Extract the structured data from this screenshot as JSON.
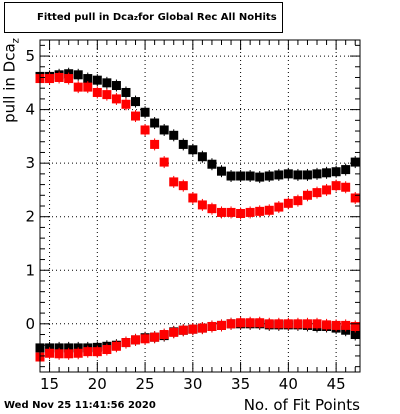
{
  "title": {
    "text": "Fitted pull in Dca",
    "sub": "z",
    "rest": " for Global Rec All NoHits"
  },
  "footer": "Wed Nov 25 11:41:56 2020",
  "colors": {
    "series_black": "#000000",
    "series_red": "#ff0000",
    "grid": "#000000"
  },
  "chart_data": {
    "type": "scatter",
    "title": "Fitted pull in Dca_z for Global Rec All NoHits",
    "xlabel": "No. of Fit Points",
    "ylabel": "pull in Dca_z",
    "xlim": [
      14,
      47.5
    ],
    "ylim": [
      -0.9,
      5.3
    ],
    "x_ticks": [
      15,
      20,
      25,
      30,
      35,
      40,
      45
    ],
    "y_ticks": [
      0,
      1,
      2,
      3,
      4,
      5
    ],
    "grid": true,
    "series": [
      {
        "color": "#000000",
        "x": [
          14,
          15,
          16,
          17,
          18,
          19,
          20,
          21,
          22,
          23,
          24,
          25,
          26,
          27,
          28,
          29,
          30,
          31,
          32,
          33,
          34,
          35,
          36,
          37,
          38,
          39,
          40,
          41,
          42,
          43,
          44,
          45,
          46,
          47
        ],
        "y": [
          4.62,
          4.62,
          4.65,
          4.67,
          4.65,
          4.58,
          4.55,
          4.5,
          4.45,
          4.32,
          4.15,
          3.95,
          3.75,
          3.62,
          3.52,
          3.35,
          3.25,
          3.12,
          2.98,
          2.85,
          2.76,
          2.76,
          2.76,
          2.74,
          2.76,
          2.78,
          2.8,
          2.78,
          2.78,
          2.8,
          2.82,
          2.84,
          2.88,
          3.02
        ]
      },
      {
        "color": "#000000",
        "x": [
          14,
          15,
          16,
          17,
          18,
          19,
          20,
          21,
          22,
          23,
          24,
          25,
          26,
          27,
          28,
          29,
          30,
          31,
          32,
          33,
          34,
          35,
          36,
          37,
          38,
          39,
          40,
          41,
          42,
          43,
          44,
          45,
          46,
          47
        ],
        "y": [
          -0.45,
          -0.45,
          -0.45,
          -0.45,
          -0.45,
          -0.45,
          -0.44,
          -0.42,
          -0.4,
          -0.35,
          -0.3,
          -0.26,
          -0.25,
          -0.22,
          -0.15,
          -0.12,
          -0.1,
          -0.08,
          -0.05,
          -0.03,
          0.0,
          0.0,
          0.0,
          0.0,
          -0.02,
          -0.02,
          -0.02,
          -0.02,
          -0.03,
          -0.05,
          -0.05,
          -0.08,
          -0.12,
          -0.2
        ]
      },
      {
        "color": "#ff0000",
        "x": [
          14,
          15,
          16,
          17,
          18,
          19,
          20,
          21,
          22,
          23,
          24,
          25,
          26,
          27,
          28,
          29,
          30,
          31,
          32,
          33,
          34,
          35,
          36,
          37,
          38,
          39,
          40,
          41,
          42,
          43,
          44,
          45,
          46,
          47
        ],
        "y": [
          4.58,
          4.58,
          4.6,
          4.58,
          4.42,
          4.42,
          4.32,
          4.28,
          4.2,
          4.1,
          3.88,
          3.62,
          3.35,
          3.02,
          2.65,
          2.58,
          2.35,
          2.22,
          2.15,
          2.08,
          2.08,
          2.06,
          2.08,
          2.1,
          2.12,
          2.18,
          2.25,
          2.3,
          2.4,
          2.45,
          2.5,
          2.58,
          2.55,
          2.35
        ]
      },
      {
        "color": "#ff0000",
        "x": [
          14,
          15,
          16,
          17,
          18,
          19,
          20,
          21,
          22,
          23,
          24,
          25,
          26,
          27,
          28,
          29,
          30,
          31,
          32,
          33,
          34,
          35,
          36,
          37,
          38,
          39,
          40,
          41,
          42,
          43,
          44,
          45,
          46,
          47
        ],
        "y": [
          -0.62,
          -0.55,
          -0.56,
          -0.56,
          -0.55,
          -0.52,
          -0.52,
          -0.48,
          -0.42,
          -0.35,
          -0.3,
          -0.28,
          -0.25,
          -0.2,
          -0.16,
          -0.12,
          -0.1,
          -0.08,
          -0.05,
          -0.03,
          0.0,
          0.02,
          0.02,
          0.02,
          0.0,
          0.0,
          0.0,
          0.0,
          0.0,
          0.0,
          -0.02,
          -0.03,
          -0.03,
          -0.05
        ]
      }
    ]
  }
}
